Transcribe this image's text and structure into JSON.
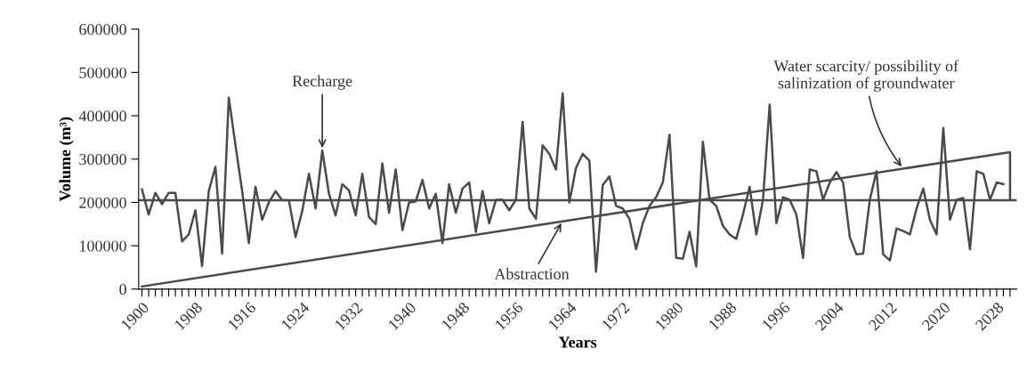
{
  "chart_data": {
    "type": "line",
    "xlabel": "Years",
    "ylabel": "Volume (m³)",
    "xlim": [
      1899.5,
      2031
    ],
    "ylim": [
      0,
      600000
    ],
    "yticks": [
      0,
      100000,
      200000,
      300000,
      400000,
      500000,
      600000
    ],
    "xticks": [
      1900,
      {
        "value": 1901,
        "label": null
      },
      {
        "value": 1902,
        "label": null
      },
      {
        "value": 1903,
        "label": null
      },
      {
        "value": 1904,
        "label": null
      },
      {
        "value": 1905,
        "label": null
      },
      {
        "value": 1906,
        "label": null
      },
      {
        "value": 1907,
        "label": null
      },
      1908,
      {
        "value": 1909,
        "label": null
      },
      {
        "value": 1910,
        "label": null
      },
      {
        "value": 1911,
        "label": null
      },
      {
        "value": 1912,
        "label": null
      },
      {
        "value": 1913,
        "label": null
      },
      {
        "value": 1914,
        "label": null
      },
      {
        "value": 1915,
        "label": null
      },
      1916,
      {
        "value": 1917,
        "label": null
      },
      {
        "value": 1918,
        "label": null
      },
      {
        "value": 1919,
        "label": null
      },
      {
        "value": 1920,
        "label": null
      },
      {
        "value": 1921,
        "label": null
      },
      {
        "value": 1922,
        "label": null
      },
      {
        "value": 1923,
        "label": null
      },
      1924,
      {
        "value": 1925,
        "label": null
      },
      {
        "value": 1926,
        "label": null
      },
      {
        "value": 1927,
        "label": null
      },
      {
        "value": 1928,
        "label": null
      },
      {
        "value": 1929,
        "label": null
      },
      {
        "value": 1930,
        "label": null
      },
      {
        "value": 1931,
        "label": null
      },
      1932,
      {
        "value": 1933,
        "label": null
      },
      {
        "value": 1934,
        "label": null
      },
      {
        "value": 1935,
        "label": null
      },
      {
        "value": 1936,
        "label": null
      },
      {
        "value": 1937,
        "label": null
      },
      {
        "value": 1938,
        "label": null
      },
      {
        "value": 1939,
        "label": null
      },
      1940,
      {
        "value": 1941,
        "label": null
      },
      {
        "value": 1942,
        "label": null
      },
      {
        "value": 1943,
        "label": null
      },
      {
        "value": 1944,
        "label": null
      },
      {
        "value": 1945,
        "label": null
      },
      {
        "value": 1946,
        "label": null
      },
      {
        "value": 1947,
        "label": null
      },
      1948,
      {
        "value": 1949,
        "label": null
      },
      {
        "value": 1950,
        "label": null
      },
      {
        "value": 1951,
        "label": null
      },
      {
        "value": 1952,
        "label": null
      },
      {
        "value": 1953,
        "label": null
      },
      {
        "value": 1954,
        "label": null
      },
      {
        "value": 1955,
        "label": null
      },
      1956,
      {
        "value": 1957,
        "label": null
      },
      {
        "value": 1958,
        "label": null
      },
      {
        "value": 1959,
        "label": null
      },
      {
        "value": 1960,
        "label": null
      },
      {
        "value": 1961,
        "label": null
      },
      {
        "value": 1962,
        "label": null
      },
      {
        "value": 1963,
        "label": null
      },
      1964,
      {
        "value": 1965,
        "label": null
      },
      {
        "value": 1966,
        "label": null
      },
      {
        "value": 1967,
        "label": null
      },
      {
        "value": 1968,
        "label": null
      },
      {
        "value": 1969,
        "label": null
      },
      {
        "value": 1970,
        "label": null
      },
      {
        "value": 1971,
        "label": null
      },
      1972,
      {
        "value": 1973,
        "label": null
      },
      {
        "value": 1974,
        "label": null
      },
      {
        "value": 1975,
        "label": null
      },
      {
        "value": 1976,
        "label": null
      },
      {
        "value": 1977,
        "label": null
      },
      {
        "value": 1978,
        "label": null
      },
      {
        "value": 1979,
        "label": null
      },
      1980,
      {
        "value": 1981,
        "label": null
      },
      {
        "value": 1982,
        "label": null
      },
      {
        "value": 1983,
        "label": null
      },
      {
        "value": 1984,
        "label": null
      },
      {
        "value": 1985,
        "label": null
      },
      {
        "value": 1986,
        "label": null
      },
      {
        "value": 1987,
        "label": null
      },
      1988,
      {
        "value": 1989,
        "label": null
      },
      {
        "value": 1990,
        "label": null
      },
      {
        "value": 1991,
        "label": null
      },
      {
        "value": 1992,
        "label": null
      },
      {
        "value": 1993,
        "label": null
      },
      {
        "value": 1994,
        "label": null
      },
      {
        "value": 1995,
        "label": null
      },
      1996,
      {
        "value": 1997,
        "label": null
      },
      {
        "value": 1998,
        "label": null
      },
      {
        "value": 1999,
        "label": null
      },
      {
        "value": 2000,
        "label": null
      },
      {
        "value": 2001,
        "label": null
      },
      {
        "value": 2002,
        "label": null
      },
      {
        "value": 2003,
        "label": null
      },
      2004,
      {
        "value": 2005,
        "label": null
      },
      {
        "value": 2006,
        "label": null
      },
      {
        "value": 2007,
        "label": null
      },
      {
        "value": 2008,
        "label": null
      },
      {
        "value": 2009,
        "label": null
      },
      {
        "value": 2010,
        "label": null
      },
      {
        "value": 2011,
        "label": null
      },
      2012,
      {
        "value": 2013,
        "label": null
      },
      {
        "value": 2014,
        "label": null
      },
      {
        "value": 2015,
        "label": null
      },
      {
        "value": 2016,
        "label": null
      },
      {
        "value": 2017,
        "label": null
      },
      {
        "value": 2018,
        "label": null
      },
      {
        "value": 2019,
        "label": null
      },
      2020,
      {
        "value": 2021,
        "label": null
      },
      {
        "value": 2022,
        "label": null
      },
      {
        "value": 2023,
        "label": null
      },
      {
        "value": 2024,
        "label": null
      },
      {
        "value": 2025,
        "label": null
      },
      {
        "value": 2026,
        "label": null
      },
      {
        "value": 2027,
        "label": null
      },
      2028,
      {
        "value": 2029,
        "label": null
      },
      {
        "value": 2030,
        "label": null
      }
    ],
    "grid": false,
    "legend": false,
    "marker": "none",
    "line_style": "solid",
    "series": [
      {
        "color": "#4a4a4a",
        "x": [
          1900,
          1901,
          1902,
          1903,
          1904,
          1905,
          1906,
          1907,
          1908,
          1909,
          1910,
          1911,
          1912,
          1913,
          1914,
          1915,
          1916,
          1917,
          1918,
          1919,
          1920,
          1921,
          1922,
          1923,
          1924,
          1925,
          1926,
          1927,
          1928,
          1929,
          1930,
          1931,
          1932,
          1933,
          1934,
          1935,
          1936,
          1937,
          1938,
          1939,
          1940,
          1941,
          1942,
          1943,
          1944,
          1945,
          1946,
          1947,
          1948,
          1949,
          1950,
          1951,
          1952,
          1953,
          1954,
          1955,
          1956,
          1957,
          1958,
          1959,
          1960,
          1961,
          1962,
          1963,
          1964,
          1965,
          1966,
          1967,
          1968,
          1969,
          1970,
          1971,
          1972,
          1973,
          1974,
          1975,
          1976,
          1977,
          1978,
          1979,
          1980,
          1981,
          1982,
          1983,
          1984,
          1985,
          1986,
          1987,
          1988,
          1989,
          1990,
          1991,
          1992,
          1993,
          1994,
          1995,
          1996,
          1997,
          1998,
          1999,
          2000,
          2001,
          2002,
          2003,
          2004,
          2005,
          2006,
          2007,
          2008,
          2009,
          2010,
          2011,
          2012,
          2013,
          2014,
          2015,
          2016,
          2017,
          2018,
          2019,
          2020,
          2021,
          2022,
          2023,
          2024,
          2025,
          2026,
          2027,
          2028,
          2029
        ],
        "values": [
          230000,
          172000,
          222000,
          196000,
          222000,
          222000,
          110000,
          126000,
          182000,
          53000,
          226000,
          282000,
          82000,
          442000,
          332000,
          226000,
          106000,
          236000,
          160000,
          200000,
          226000,
          205000,
          205000,
          120000,
          180000,
          266000,
          186000,
          320000,
          220000,
          170000,
          242000,
          228000,
          170000,
          266000,
          166000,
          150000,
          290000,
          176000,
          276000,
          136000,
          200000,
          202000,
          252000,
          186000,
          220000,
          106000,
          242000,
          176000,
          232000,
          246000,
          132000,
          226000,
          152000,
          206000,
          206000,
          182000,
          206000,
          386000,
          186000,
          162000,
          332000,
          312000,
          276000,
          452000,
          200000,
          280000,
          312000,
          296000,
          40000,
          240000,
          260000,
          192000,
          186000,
          162000,
          92000,
          152000,
          192000,
          212000,
          246000,
          356000,
          72000,
          70000,
          132000,
          52000,
          340000,
          206000,
          192000,
          146000,
          126000,
          116000,
          172000,
          236000,
          126000,
          206000,
          426000,
          152000,
          212000,
          206000,
          172000,
          72000,
          276000,
          272000,
          206000,
          246000,
          270000,
          246000,
          120000,
          80000,
          82000,
          206000,
          272000,
          80000,
          66000,
          140000,
          134000,
          126000,
          186000,
          232000,
          160000,
          126000,
          372000,
          160000,
          206000,
          210000,
          92000,
          272000,
          266000,
          206000,
          246000,
          242000
        ]
      },
      {
        "color": "#4a4a4a",
        "x": [
          1900,
          2030,
          2030
        ],
        "values": [
          6000,
          316000,
          206000
        ]
      }
    ],
    "ref_lines": [
      {
        "axis": "y",
        "value": 205000,
        "color": "#4a4a4a"
      }
    ],
    "annotations": [
      {
        "text": "Recharge",
        "x": 1927,
        "y": 320000
      },
      {
        "text": "Abstraction",
        "x": 1963,
        "y": 157000
      },
      {
        "text": "Water scarcity/ possibility of\nsalinization of groundwater",
        "x": 2014,
        "y": 278000
      }
    ]
  }
}
